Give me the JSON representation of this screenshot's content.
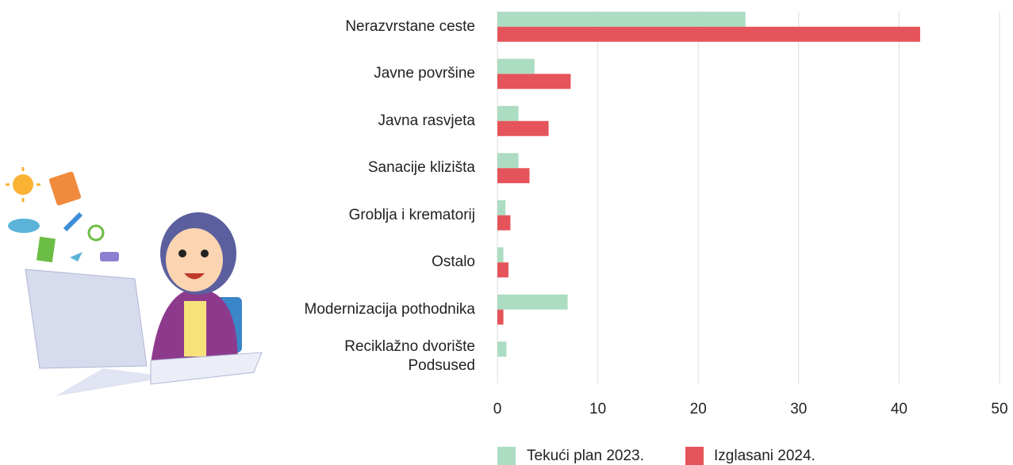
{
  "chart_data": {
    "type": "bar",
    "orientation": "horizontal",
    "categories": [
      "Nerazvrstane ceste",
      "Javne površine",
      "Javna rasvjeta",
      "Sanacije klizišta",
      "Groblja i krematorij",
      "Ostalo",
      "Modernizacija pothodnika",
      "Reciklažno dvorište\nPodsused"
    ],
    "series": [
      {
        "name": "Tekući plan 2023.",
        "color": "#acdcc1",
        "values": [
          24.7,
          3.7,
          2.1,
          2.1,
          0.8,
          0.6,
          7.0,
          0.9
        ]
      },
      {
        "name": "Izglasani 2024.",
        "color": "#e5545a",
        "values": [
          42.1,
          7.3,
          5.1,
          3.2,
          1.3,
          1.1,
          0.6,
          null
        ]
      }
    ],
    "xlim": [
      0,
      50
    ],
    "xticks": [
      0,
      10,
      20,
      30,
      40,
      50
    ],
    "grid": true,
    "legend": "bottom"
  }
}
